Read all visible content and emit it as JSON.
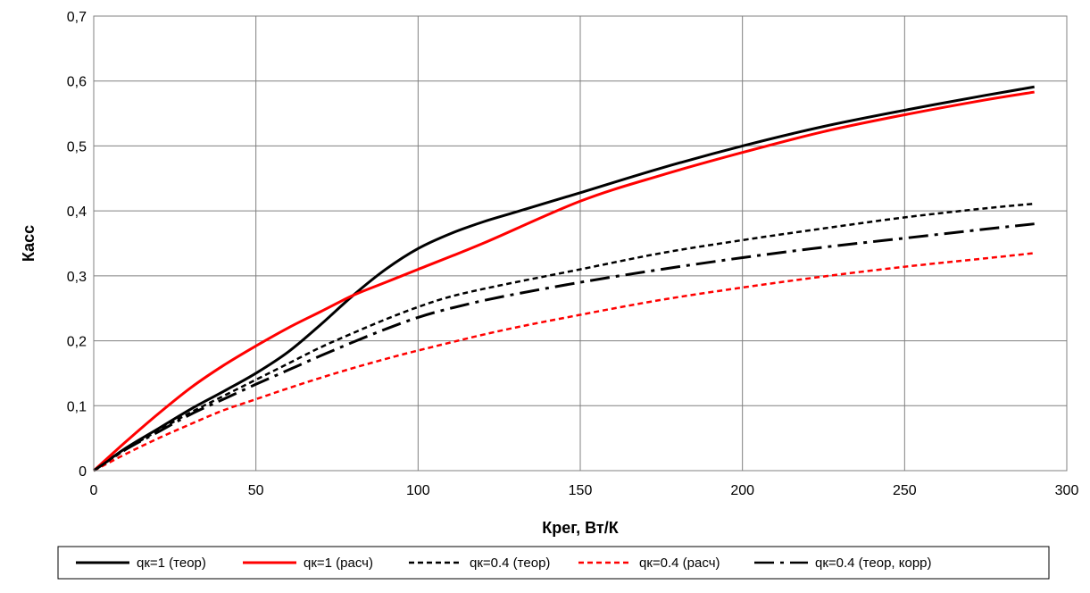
{
  "chart_data": {
    "type": "line",
    "xlabel": "Крег, Вт/К",
    "ylabel": "Касс",
    "xlim": [
      0,
      300
    ],
    "ylim": [
      0,
      0.7
    ],
    "xticks": [
      0,
      50,
      100,
      150,
      200,
      250,
      300
    ],
    "xtick_labels": [
      "0",
      "50",
      "100",
      "150",
      "200",
      "250",
      "300"
    ],
    "yticks": [
      0,
      0.1,
      0.2,
      0.3,
      0.4,
      0.5,
      0.6,
      0.7
    ],
    "ytick_labels": [
      "0",
      "0,1",
      "0,2",
      "0,3",
      "0,4",
      "0,5",
      "0,6",
      "0,7"
    ],
    "grid": true,
    "legend_position": "bottom",
    "series": [
      {
        "name": "qк=1 (теор)",
        "color": "#000000",
        "dash": "solid",
        "x": [
          0,
          10,
          20,
          30,
          40,
          50,
          60,
          70,
          80,
          90,
          100,
          110,
          120,
          130,
          150,
          175,
          200,
          225,
          250,
          275,
          290
        ],
        "y": [
          0,
          0.035,
          0.065,
          0.095,
          0.122,
          0.15,
          0.183,
          0.225,
          0.27,
          0.31,
          0.342,
          0.365,
          0.383,
          0.398,
          0.428,
          0.466,
          0.5,
          0.53,
          0.555,
          0.578,
          0.591
        ]
      },
      {
        "name": "qк=1 (расч)",
        "color": "#ff0000",
        "dash": "solid",
        "x": [
          0,
          10,
          20,
          30,
          40,
          50,
          60,
          70,
          80,
          90,
          100,
          120,
          150,
          175,
          200,
          225,
          250,
          275,
          290
        ],
        "y": [
          0,
          0.045,
          0.088,
          0.128,
          0.162,
          0.192,
          0.22,
          0.245,
          0.27,
          0.29,
          0.31,
          0.35,
          0.415,
          0.455,
          0.49,
          0.522,
          0.548,
          0.571,
          0.583
        ]
      },
      {
        "name": "qк=0.4 (теор)",
        "color": "#000000",
        "dash": "short",
        "x": [
          0,
          10,
          20,
          30,
          40,
          50,
          60,
          70,
          80,
          90,
          100,
          110,
          125,
          150,
          175,
          200,
          225,
          250,
          275,
          290
        ],
        "y": [
          0,
          0.033,
          0.062,
          0.09,
          0.115,
          0.14,
          0.165,
          0.19,
          0.212,
          0.233,
          0.252,
          0.268,
          0.285,
          0.31,
          0.335,
          0.355,
          0.373,
          0.39,
          0.404,
          0.411
        ]
      },
      {
        "name": "qк=0.4 (расч)",
        "color": "#ff0000",
        "dash": "short",
        "x": [
          0,
          10,
          20,
          30,
          40,
          50,
          60,
          70,
          80,
          90,
          100,
          125,
          150,
          175,
          200,
          225,
          250,
          275,
          290
        ],
        "y": [
          0,
          0.026,
          0.05,
          0.072,
          0.093,
          0.11,
          0.127,
          0.143,
          0.158,
          0.172,
          0.185,
          0.215,
          0.24,
          0.263,
          0.282,
          0.299,
          0.314,
          0.327,
          0.335
        ]
      },
      {
        "name": "qк=0.4 (теор, корр)",
        "color": "#000000",
        "dash": "dashdot",
        "x": [
          0,
          10,
          20,
          30,
          40,
          50,
          60,
          70,
          80,
          90,
          100,
          110,
          125,
          150,
          175,
          200,
          225,
          250,
          275,
          290
        ],
        "y": [
          0,
          0.033,
          0.06,
          0.087,
          0.11,
          0.133,
          0.155,
          0.177,
          0.198,
          0.218,
          0.236,
          0.25,
          0.267,
          0.29,
          0.31,
          0.328,
          0.344,
          0.358,
          0.372,
          0.38
        ]
      }
    ]
  }
}
